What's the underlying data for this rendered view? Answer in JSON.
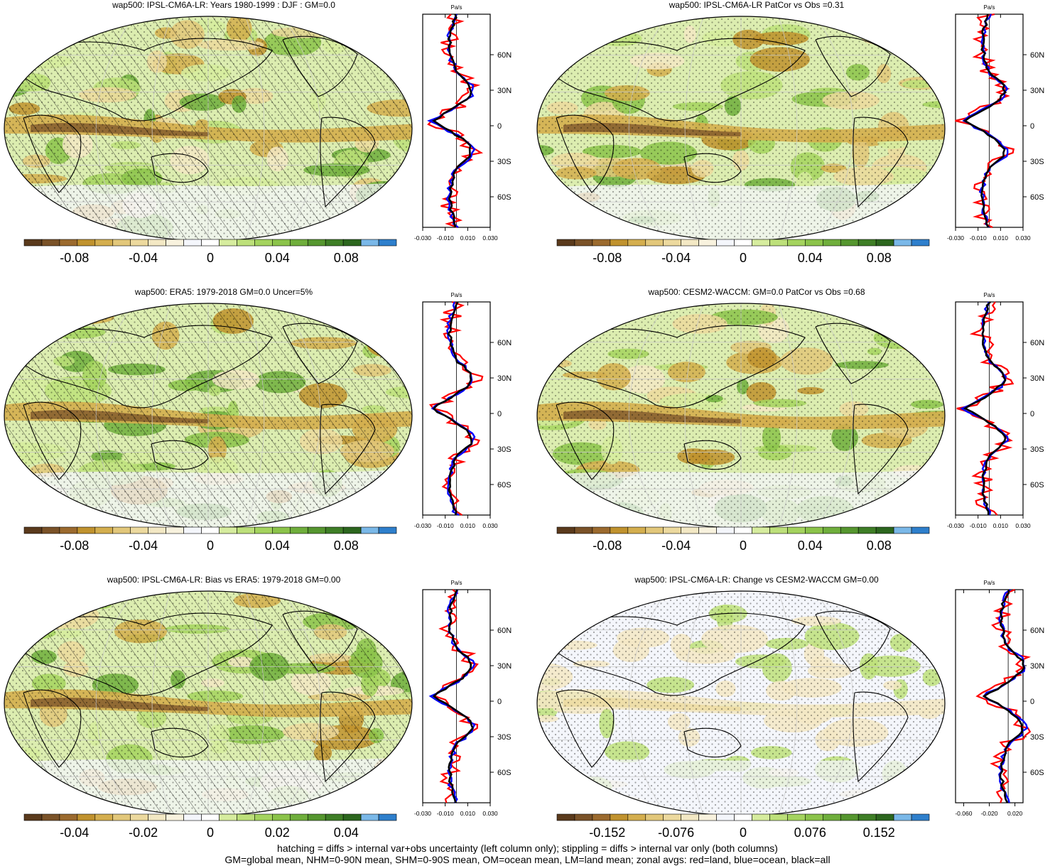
{
  "panels": [
    {
      "title": "wap500: IPSL-CM6A-LR: Years 1980-1999 : DJF : GM=0.0",
      "hatch": true,
      "colorbar_ticks": [
        "-0.08",
        "-0.04",
        "0",
        "0.04",
        "0.08"
      ],
      "profile_units": "Pa/s",
      "profile_xticks": [
        "-0.030",
        "-0.010",
        "0.010",
        "0.030"
      ],
      "profile_yticks": [
        "60N",
        "30N",
        "0",
        "30S",
        "60S"
      ]
    },
    {
      "title": "wap500: IPSL-CM6A-LR PatCor vs Obs =0.31",
      "hatch": false,
      "colorbar_ticks": [
        "-0.08",
        "-0.04",
        "0",
        "0.04",
        "0.08"
      ],
      "profile_units": "Pa/s",
      "profile_xticks": [
        "-0.030",
        "-0.010",
        "0.010",
        "0.030"
      ],
      "profile_yticks": [
        "60N",
        "30N",
        "0",
        "30S",
        "60S"
      ]
    },
    {
      "title": "wap500: ERA5: 1979-2018 GM=0.0 Uncer=5%",
      "hatch": true,
      "colorbar_ticks": [
        "-0.08",
        "-0.04",
        "0",
        "0.04",
        "0.08"
      ],
      "profile_units": "Pa/s",
      "profile_xticks": [
        "-0.030",
        "-0.010",
        "0.010",
        "0.030"
      ],
      "profile_yticks": [
        "60N",
        "30N",
        "0",
        "30S",
        "60S"
      ]
    },
    {
      "title": "wap500: CESM2-WACCM: GM=0.0 PatCor vs Obs =0.68",
      "hatch": false,
      "colorbar_ticks": [
        "-0.08",
        "-0.04",
        "0",
        "0.04",
        "0.08"
      ],
      "profile_units": "Pa/s",
      "profile_xticks": [
        "-0.030",
        "-0.010",
        "0.010",
        "0.030"
      ],
      "profile_yticks": [
        "60N",
        "30N",
        "0",
        "30S",
        "60S"
      ]
    },
    {
      "title": "wap500: IPSL-CM6A-LR: Bias vs ERA5: 1979-2018 GM=0.00",
      "hatch": true,
      "colorbar_ticks": [
        "-0.04",
        "-0.02",
        "0",
        "0.02",
        "0.04"
      ],
      "profile_units": "Pa/s",
      "profile_xticks": [
        "-0.030",
        "-0.010",
        "0.010",
        "0.030"
      ],
      "profile_yticks": [
        "60N",
        "30N",
        "0",
        "30S",
        "60S"
      ]
    },
    {
      "title": "wap500: IPSL-CM6A-LR: Change vs CESM2-WACCM GM=0.00",
      "hatch": false,
      "colorbar_ticks": [
        "-0.152",
        "-0.076",
        "0",
        "0.076",
        "0.152"
      ],
      "profile_units": "Pa/s",
      "profile_xticks": [
        "-0.060",
        "-0.020",
        "0.020"
      ],
      "profile_yticks": [
        "60N",
        "30N",
        "0",
        "30S",
        "60S"
      ]
    }
  ],
  "palette": [
    "#5a3a1c",
    "#7a5228",
    "#9b6a2e",
    "#c0922e",
    "#d4ae4e",
    "#e2c77a",
    "#ecd99e",
    "#f3e8c4",
    "#f8f2de",
    "#f4f6fb",
    "#ffffff",
    "#d6ec9e",
    "#bde07a",
    "#a4d35e",
    "#8bc34a",
    "#6fae3c",
    "#55962f",
    "#3e7e26",
    "#2c661e",
    "#7ab8e8",
    "#2e7fcc"
  ],
  "line_colors": {
    "land": "#ff0000",
    "ocean": "#0000ff",
    "all": "#000000"
  },
  "footer": {
    "line1": "hatching = diffs > internal var+obs uncertainty (left column only); stippling = diffs > internal var only (both columns)",
    "line2": "GM=global mean, NHM=0-90N mean, SHM=0-90S mean, OM=ocean mean, LM=land mean; zonal avgs: red=land, blue=ocean, black=all"
  }
}
